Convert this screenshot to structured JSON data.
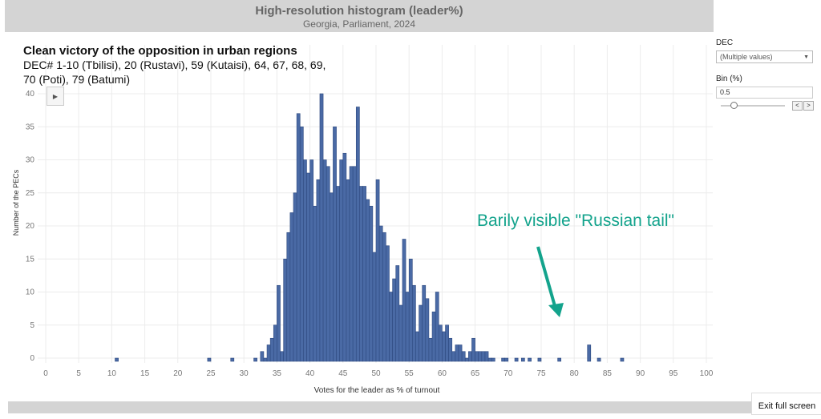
{
  "header": {
    "title": "High-resolution histogram (leader%)",
    "subtitle": "Georgia, Parliament, 2024"
  },
  "overlay": {
    "title": "Clean victory of the opposition in urban regions",
    "subtitle": "DEC# 1-10 (Tbilisi), 20 (Rustavi), 59 (Kutaisi), 64, 67, 68, 69, 70 (Poti), 79 (Batumi)"
  },
  "filters": {
    "dec_label": "DEC",
    "dec_value": "(Multiple values)",
    "bin_label": "Bin (%)",
    "bin_value": "0.5"
  },
  "annotation": {
    "text": "Barily visible \"Russian tail\"",
    "color": "#13a38c"
  },
  "exit_button": "Exit full screen",
  "chart_data": {
    "type": "bar",
    "xlabel": "Votes for the leader as % of turnout",
    "ylabel": "Number of the PECs",
    "xlim": [
      0,
      100
    ],
    "ylim": [
      0,
      40
    ],
    "xticks": [
      0,
      5,
      10,
      15,
      20,
      25,
      30,
      35,
      40,
      45,
      50,
      55,
      60,
      65,
      70,
      75,
      80,
      85,
      90,
      95,
      100
    ],
    "yticks": [
      0,
      5,
      10,
      15,
      20,
      25,
      30,
      35,
      40
    ],
    "bin_width": 0.5,
    "bar_color": "#4a6aa5",
    "grid": true,
    "x": [
      10.5,
      24.5,
      28,
      31.5,
      32.5,
      33,
      33.5,
      34,
      34.5,
      35,
      35.5,
      36,
      36.5,
      37,
      37.5,
      38,
      38.5,
      39,
      39.5,
      40,
      40.5,
      41,
      41.5,
      42,
      42.5,
      43,
      43.5,
      44,
      44.5,
      45,
      45.5,
      46,
      46.5,
      47,
      47.5,
      48,
      48.5,
      49,
      49.5,
      50,
      50.5,
      51,
      51.5,
      52,
      52.5,
      53,
      53.5,
      54,
      54.5,
      55,
      55.5,
      56,
      56.5,
      57,
      57.5,
      58,
      58.5,
      59,
      59.5,
      60,
      60.5,
      61,
      61.5,
      62,
      62.5,
      63,
      63.5,
      64,
      64.5,
      65,
      65.5,
      66,
      66.5,
      67,
      67.5,
      69,
      69.5,
      71,
      72,
      73,
      74.5,
      77.5,
      82,
      83.5,
      87
    ],
    "y": [
      0,
      0,
      0,
      0,
      1,
      0,
      2,
      3,
      5,
      11,
      1,
      15,
      19,
      22,
      25,
      37,
      35,
      30,
      28,
      30,
      23,
      27,
      40,
      30,
      29,
      25,
      35,
      26,
      30,
      31,
      27,
      29,
      29,
      38,
      26,
      26,
      24,
      23,
      16,
      27,
      20,
      19,
      17,
      10,
      12,
      14,
      8,
      18,
      10,
      15,
      11,
      4,
      8,
      11,
      9,
      3,
      7,
      10,
      5,
      4,
      5,
      3,
      1,
      2,
      2,
      1,
      0,
      1,
      3,
      1,
      1,
      1,
      1,
      0,
      0,
      0,
      0,
      0,
      0,
      0,
      0,
      0,
      2,
      0,
      0
    ]
  }
}
